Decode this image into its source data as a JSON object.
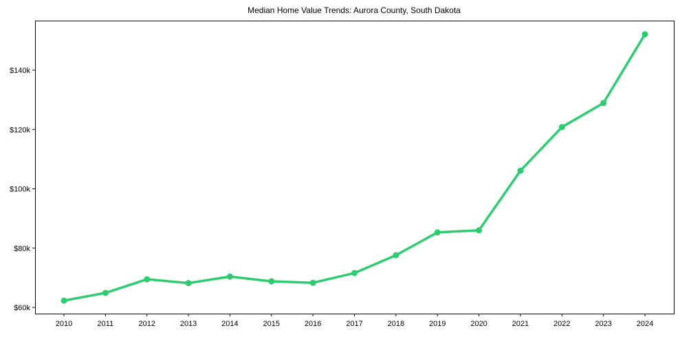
{
  "chart_data": {
    "type": "line",
    "title": "Median Home Value Trends: Aurora County, South Dakota",
    "xlabel": "",
    "ylabel": "",
    "x": [
      "2010",
      "2011",
      "2012",
      "2013",
      "2014",
      "2015",
      "2016",
      "2017",
      "2018",
      "2019",
      "2020",
      "2021",
      "2022",
      "2023",
      "2024"
    ],
    "series": [
      {
        "name": "Median Home Value",
        "color": "#2ecc71",
        "marker": "circle",
        "values": [
          62300,
          64900,
          69500,
          68200,
          70400,
          68800,
          68300,
          71600,
          77600,
          85300,
          86000,
          106100,
          120800,
          128900,
          152100
        ]
      }
    ],
    "yticks": [
      60000,
      80000,
      100000,
      120000,
      140000
    ],
    "ytick_labels": [
      "$60k",
      "$80k",
      "$100k",
      "$120k",
      "$140k"
    ],
    "ylim": [
      60000,
      162000
    ],
    "grid": false,
    "legend": null
  }
}
